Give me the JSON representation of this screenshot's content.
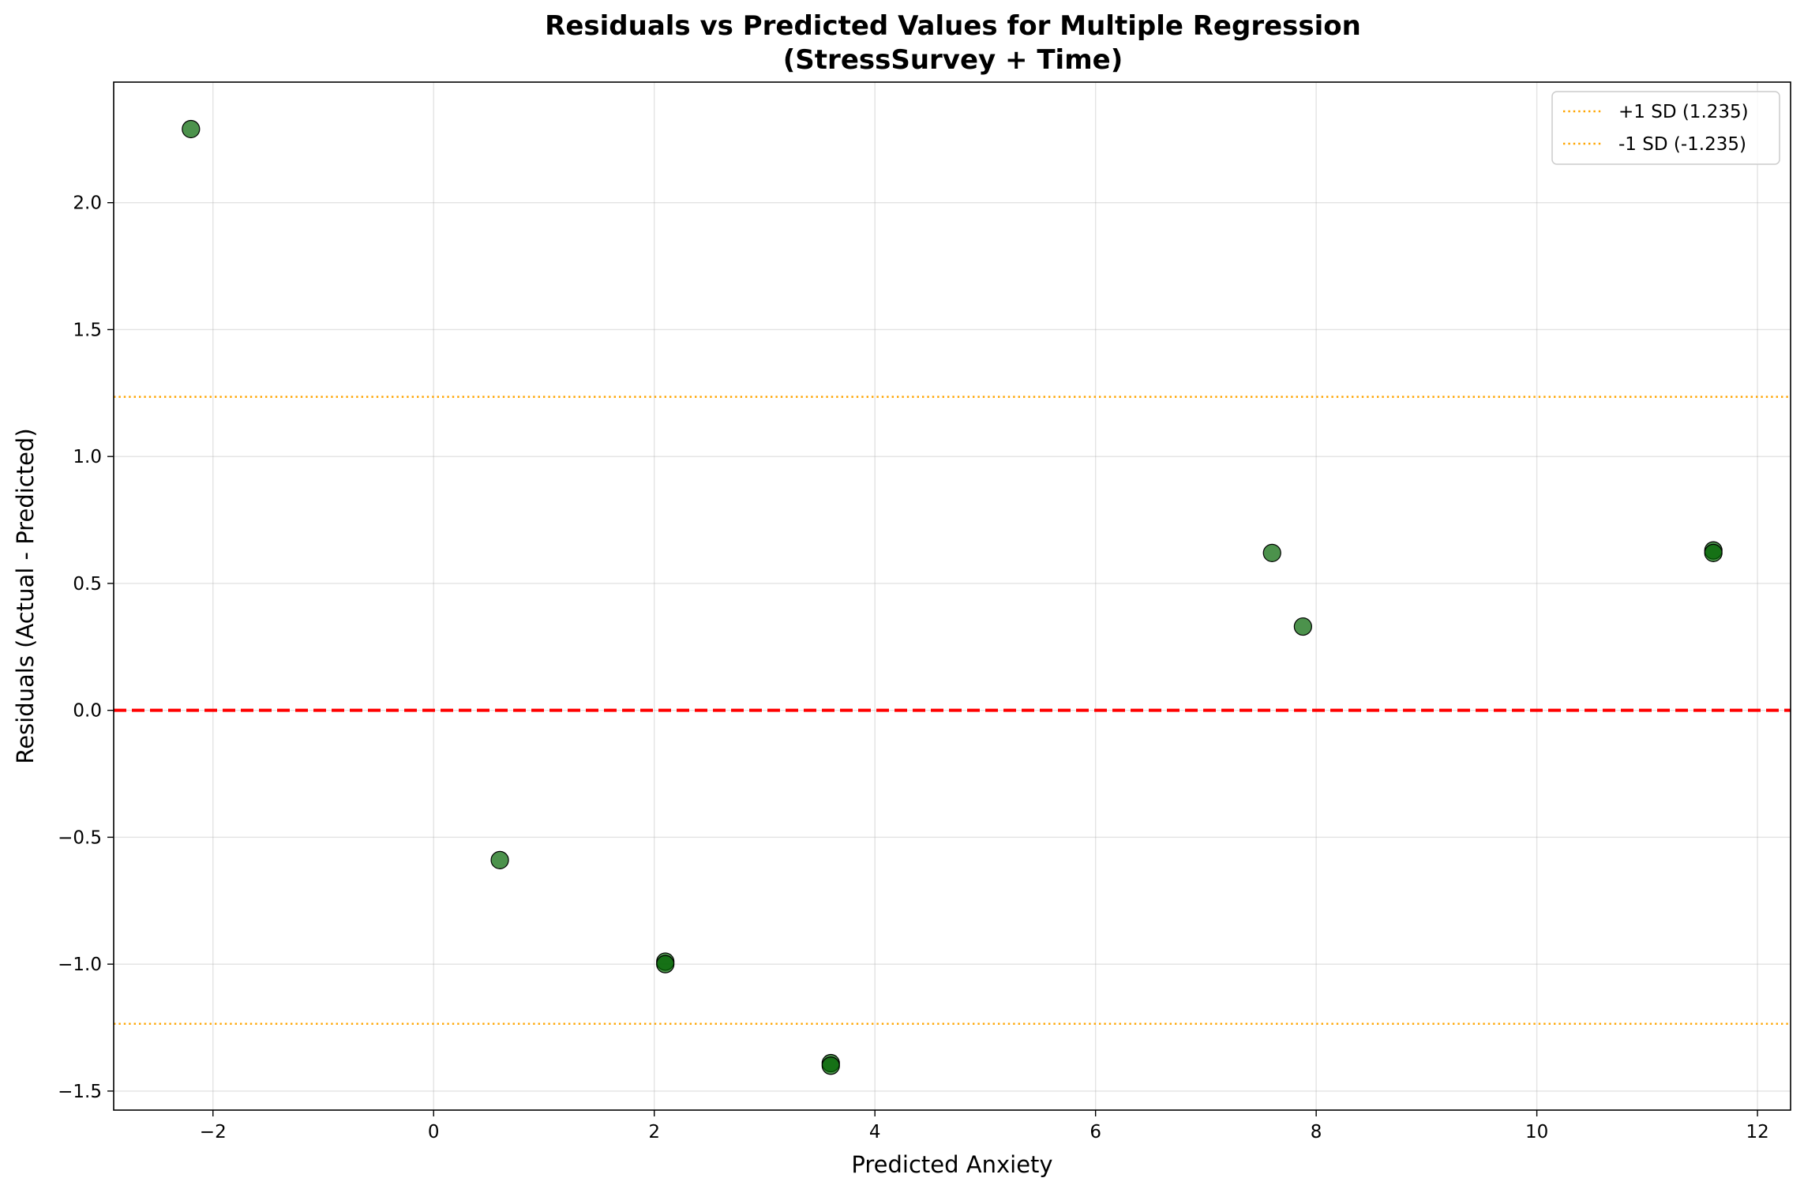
{
  "chart_data": {
    "type": "scatter",
    "title": "Residuals vs Predicted Values for Multiple Regression",
    "subtitle": "(StressSurvey + Time)",
    "xlabel": "Predicted Anxiety",
    "ylabel": "Residuals (Actual - Predicted)",
    "xlim": [
      -2.9,
      12.3
    ],
    "ylim": [
      -1.575,
      2.475
    ],
    "xticks": [
      -2,
      0,
      2,
      4,
      6,
      8,
      10,
      12
    ],
    "xtick_labels": [
      "−2",
      "0",
      "2",
      "4",
      "6",
      "8",
      "10",
      "12"
    ],
    "yticks": [
      -1.5,
      -1.0,
      -0.5,
      0.0,
      0.5,
      1.0,
      1.5,
      2.0
    ],
    "ytick_labels": [
      "−1.5",
      "−1.0",
      "−0.5",
      "0.0",
      "0.5",
      "1.0",
      "1.5",
      "2.0"
    ],
    "grid": true,
    "legend_position": "top-right",
    "points": [
      {
        "x": -2.2,
        "y": 2.29
      },
      {
        "x": 0.6,
        "y": -0.59
      },
      {
        "x": 2.1,
        "y": -0.99
      },
      {
        "x": 3.6,
        "y": -1.39
      },
      {
        "x": 7.6,
        "y": 0.62
      },
      {
        "x": 7.88,
        "y": 0.33
      },
      {
        "x": 11.6,
        "y": 0.63
      },
      {
        "x": 11.6,
        "y": 0.62
      },
      {
        "x": 2.1,
        "y": -1.0
      },
      {
        "x": 3.6,
        "y": -1.4
      }
    ],
    "point_color": "#006400",
    "point_edge_color": "#000000",
    "reference_lines": [
      {
        "y": 0.0,
        "style": "dashed",
        "color": "#ff0000"
      },
      {
        "y": 1.235,
        "style": "dotted",
        "color": "#ffa500",
        "label": "+1 SD (1.235)"
      },
      {
        "y": -1.235,
        "style": "dotted",
        "color": "#ffa500",
        "label": "-1 SD (-1.235)"
      }
    ]
  }
}
